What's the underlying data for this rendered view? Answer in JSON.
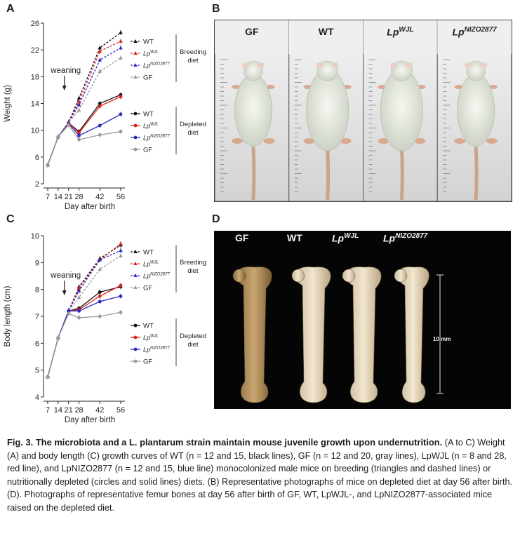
{
  "panels": {
    "A": "A",
    "B": "B",
    "C": "C",
    "D": "D"
  },
  "chart_data": [
    {
      "type": "line",
      "panel": "A",
      "xlabel": "Day after birth",
      "ylabel": "Weight (g)",
      "x": [
        7,
        14,
        21,
        28,
        42,
        56
      ],
      "x_tick_labels": [
        "7",
        "14",
        "21",
        "28",
        "42",
        "56"
      ],
      "ylim": [
        2,
        26
      ],
      "yticks": [
        2,
        6,
        10,
        14,
        18,
        22,
        26
      ],
      "annotation": "weaning",
      "group_labels": [
        "Breeding diet",
        "Depleted diet"
      ],
      "series": [
        {
          "name": "WT",
          "group": "Breeding diet",
          "color": "#111111",
          "dashed": true,
          "marker": "triangle",
          "values": [
            4.8,
            9.0,
            11.2,
            14.8,
            22.3,
            24.6
          ]
        },
        {
          "name": "LpWJL",
          "group": "Breeding diet",
          "color": "#e02020",
          "dashed": true,
          "marker": "triangle",
          "values": [
            4.8,
            9.0,
            11.2,
            14.2,
            21.8,
            23.3
          ]
        },
        {
          "name": "LpNIZO2877",
          "group": "Breeding diet",
          "color": "#2b2bbf",
          "dashed": true,
          "marker": "triangle",
          "values": [
            4.8,
            9.0,
            11.2,
            13.8,
            20.5,
            22.3
          ]
        },
        {
          "name": "GF",
          "group": "Breeding diet",
          "color": "#9a9a9a",
          "dashed": true,
          "marker": "triangle",
          "values": [
            4.8,
            9.0,
            11.2,
            13.0,
            18.8,
            20.8
          ]
        },
        {
          "name": "WT",
          "group": "Depleted diet",
          "color": "#111111",
          "dashed": false,
          "marker": "circle",
          "values": [
            4.8,
            9.0,
            11.1,
            9.8,
            14.0,
            15.3
          ]
        },
        {
          "name": "LpWJL",
          "group": "Depleted diet",
          "color": "#e02020",
          "dashed": false,
          "marker": "circle",
          "values": [
            4.8,
            9.0,
            11.1,
            9.6,
            13.6,
            15.0
          ]
        },
        {
          "name": "LpNIZO2877",
          "group": "Depleted diet",
          "color": "#2b2bbf",
          "dashed": false,
          "marker": "circle",
          "values": [
            4.8,
            9.0,
            11.0,
            9.2,
            10.7,
            12.4
          ]
        },
        {
          "name": "GF",
          "group": "Depleted diet",
          "color": "#9a9a9a",
          "dashed": false,
          "marker": "circle",
          "values": [
            4.8,
            9.0,
            10.8,
            8.6,
            9.3,
            9.8
          ]
        }
      ]
    },
    {
      "type": "line",
      "panel": "C",
      "xlabel": "Day after birth",
      "ylabel": "Body length (cm)",
      "x": [
        7,
        14,
        21,
        28,
        42,
        56
      ],
      "x_tick_labels": [
        "7",
        "14",
        "21",
        "28",
        "42",
        "56"
      ],
      "ylim": [
        4,
        10
      ],
      "yticks": [
        4,
        5,
        6,
        7,
        8,
        9,
        10
      ],
      "annotation": "weaning",
      "group_labels": [
        "Breeding diet",
        "Depleted diet"
      ],
      "series": [
        {
          "name": "WT",
          "group": "Breeding diet",
          "color": "#111111",
          "dashed": true,
          "marker": "triangle",
          "values": [
            4.75,
            6.2,
            7.2,
            8.1,
            9.15,
            9.65
          ]
        },
        {
          "name": "LpWJL",
          "group": "Breeding diet",
          "color": "#e02020",
          "dashed": true,
          "marker": "triangle",
          "values": [
            4.75,
            6.2,
            7.2,
            8.05,
            9.1,
            9.7
          ]
        },
        {
          "name": "LpNIZO2877",
          "group": "Breeding diet",
          "color": "#2b2bbf",
          "dashed": true,
          "marker": "triangle",
          "values": [
            4.75,
            6.2,
            7.2,
            7.95,
            9.1,
            9.45
          ]
        },
        {
          "name": "GF",
          "group": "Breeding diet",
          "color": "#9a9a9a",
          "dashed": true,
          "marker": "triangle",
          "values": [
            4.75,
            6.2,
            7.2,
            7.7,
            8.75,
            9.25
          ]
        },
        {
          "name": "WT",
          "group": "Depleted diet",
          "color": "#111111",
          "dashed": false,
          "marker": "circle",
          "values": [
            4.75,
            6.2,
            7.2,
            7.3,
            7.9,
            8.1
          ]
        },
        {
          "name": "LpWJL",
          "group": "Depleted diet",
          "color": "#e02020",
          "dashed": false,
          "marker": "circle",
          "values": [
            4.75,
            6.2,
            7.2,
            7.25,
            7.75,
            8.15
          ]
        },
        {
          "name": "LpNIZO2877",
          "group": "Depleted diet",
          "color": "#2b2bbf",
          "dashed": false,
          "marker": "circle",
          "values": [
            4.75,
            6.2,
            7.2,
            7.2,
            7.55,
            7.75
          ]
        },
        {
          "name": "GF",
          "group": "Depleted diet",
          "color": "#9a9a9a",
          "dashed": false,
          "marker": "circle",
          "values": [
            4.75,
            6.2,
            7.1,
            6.95,
            7.0,
            7.15
          ]
        }
      ]
    }
  ],
  "legend": {
    "breeding_diet": "Breeding diet",
    "depleted_diet": "Depleted diet",
    "wt": "WT",
    "gf": "GF",
    "lp_prefix": "Lp",
    "wjl_sup": "WJL",
    "nizo_sup": "NIZO2877"
  },
  "panel_b": {
    "labels": [
      {
        "text": "GF",
        "sup": ""
      },
      {
        "text": "WT",
        "sup": ""
      },
      {
        "text": "Lp",
        "sup": "WJL"
      },
      {
        "text": "Lp",
        "sup": "NIZO2877"
      }
    ]
  },
  "panel_d": {
    "labels": [
      {
        "text": "GF",
        "sup": ""
      },
      {
        "text": "WT",
        "sup": ""
      },
      {
        "text": "Lp",
        "sup": "WJL"
      },
      {
        "text": "Lp",
        "sup": "NIZO2877"
      }
    ],
    "scale_label": "10 mm"
  },
  "caption": {
    "title": "Fig. 3. The microbiota and a L. plantarum strain maintain mouse juvenile growth upon undernutrition.",
    "body": "(A to C) Weight (A) and body length (C) growth curves of WT (n = 12 and 15, black lines), GF (n = 12 and 20, gray lines), LpWJL (n = 8 and 28, red line), and LpNIZO2877 (n = 12 and 15, blue line) monocolonized male mice on breeding (triangles and dashed lines) or nutritionally depleted (circles and solid lines) diets. (B) Representative photographs of mice on depleted diet at day 56 after birth. (D). Photographs of representative femur bones at day 56 after birth of GF, WT, LpWJL-, and LpNIZO2877-associated mice raised on the depleted diet."
  }
}
